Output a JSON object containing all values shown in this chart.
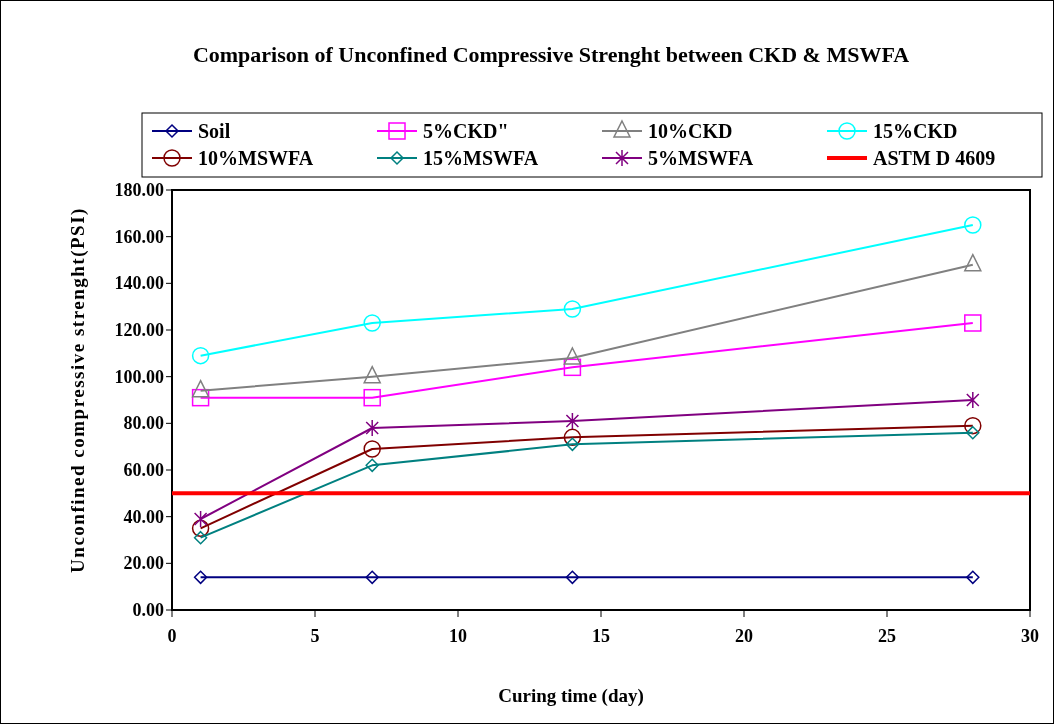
{
  "chart_data": {
    "type": "line",
    "title": "Comparison of Unconfined Compressive Strenght between CKD & MSWFA",
    "xlabel": "Curing time (day)",
    "ylabel": "Unconfined compressive strenght(PSI)",
    "x": [
      1,
      7,
      14,
      28
    ],
    "series": [
      {
        "name": "Soil",
        "color": "#000080",
        "marker": "diamond",
        "values": [
          14,
          14,
          14,
          14
        ]
      },
      {
        "name": "5%CKD\"",
        "color": "#ff00ff",
        "marker": "square",
        "values": [
          91,
          91,
          104,
          123
        ]
      },
      {
        "name": "10%CKD",
        "color": "#808080",
        "marker": "triangle",
        "values": [
          94,
          100,
          108,
          148
        ]
      },
      {
        "name": "15%CKD",
        "color": "#00ffff",
        "marker": "circle",
        "values": [
          109,
          123,
          129,
          165
        ]
      },
      {
        "name": "10%MSWFA",
        "color": "#800000",
        "marker": "circle",
        "values": [
          35,
          69,
          74,
          79
        ]
      },
      {
        "name": "15%MSWFA",
        "color": "#008080",
        "marker": "diamond",
        "values": [
          31,
          62,
          71,
          76
        ]
      },
      {
        "name": "5%MSWFA",
        "color": "#800080",
        "marker": "cross",
        "values": [
          39,
          78,
          81,
          90
        ]
      },
      {
        "name": "ASTM D 4609",
        "color": "#ff0000",
        "marker": "none",
        "x": [
          0,
          30
        ],
        "values": [
          50,
          50
        ]
      }
    ],
    "xlim": [
      0,
      30
    ],
    "xticks": [
      0,
      5,
      10,
      15,
      20,
      25,
      30
    ],
    "ylim": [
      0,
      180
    ],
    "yticks": [
      {
        "value": 0,
        "label": "0.00"
      },
      {
        "value": 20,
        "label": "20.00"
      },
      {
        "value": 40,
        "label": "40.00"
      },
      {
        "value": 60,
        "label": "60.00"
      },
      {
        "value": 80,
        "label": "80.00"
      },
      {
        "value": 100,
        "label": "100.00"
      },
      {
        "value": 120,
        "label": "120.00"
      },
      {
        "value": 140,
        "label": "140.00"
      },
      {
        "value": 160,
        "label": "160.00"
      },
      {
        "value": 180,
        "label": "180.00"
      }
    ],
    "grid": false,
    "legend": "top",
    "line_style": "solid"
  }
}
